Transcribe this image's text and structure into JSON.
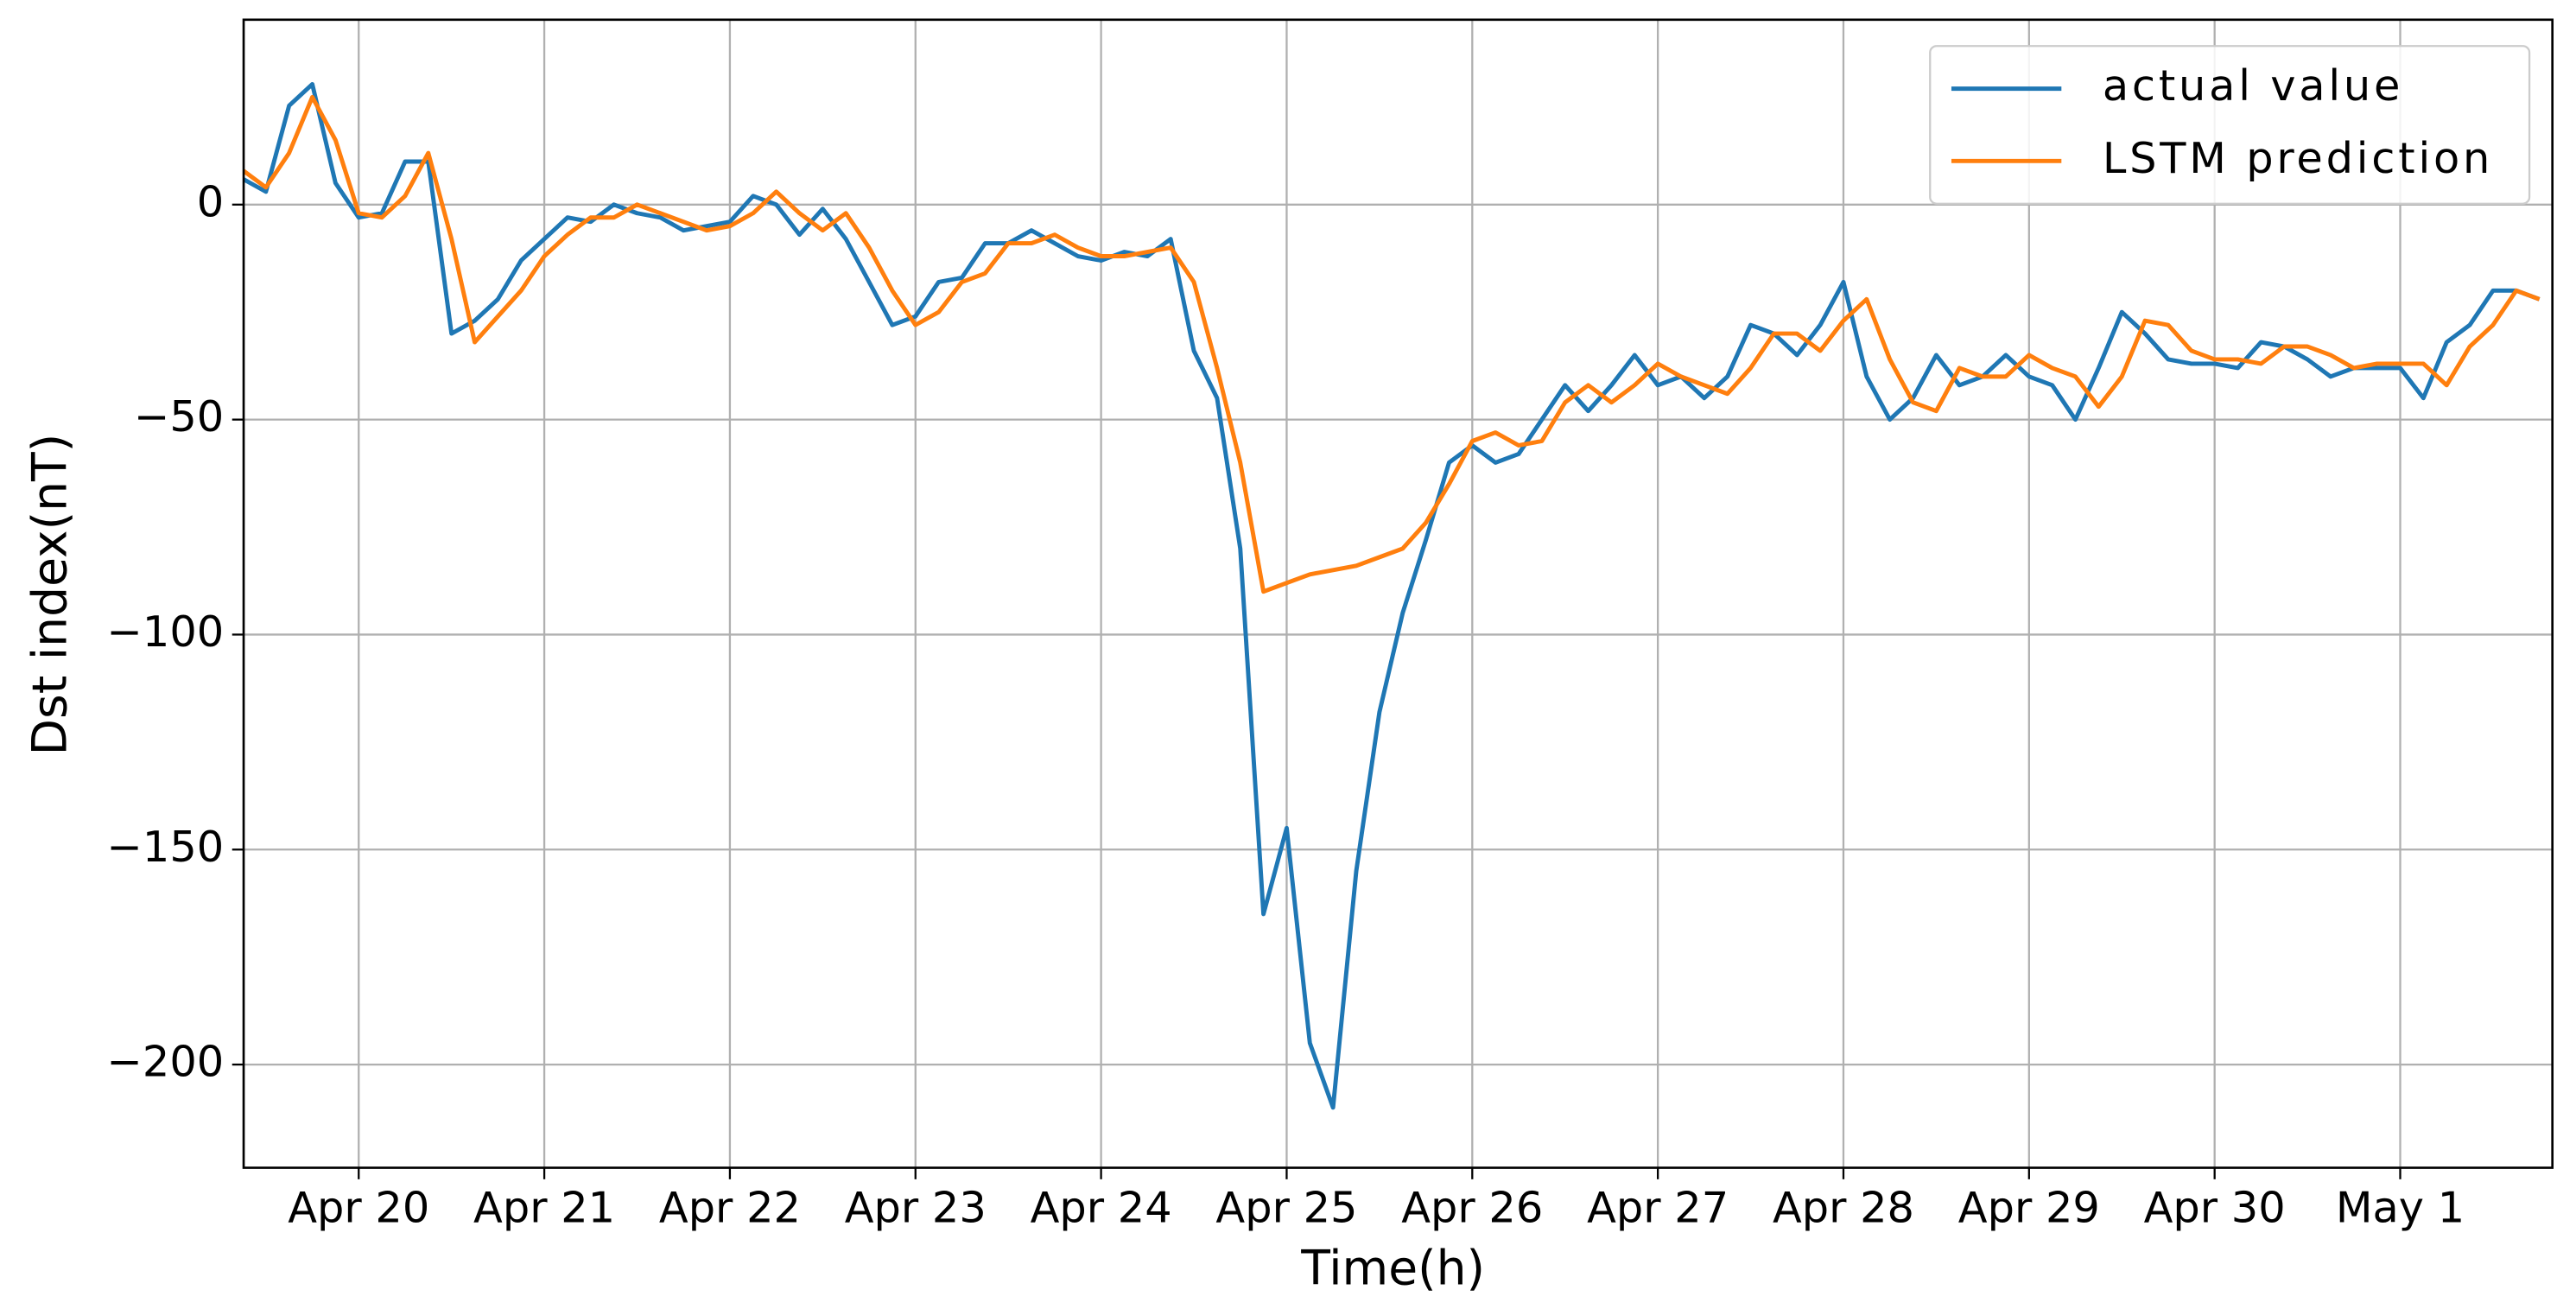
{
  "chart_data": {
    "type": "line",
    "xlabel": "Time(h)",
    "ylabel": "Dst index(nT)",
    "grid": true,
    "legend": "upper right",
    "x": [
      -0.625,
      -0.5,
      -0.375,
      -0.25,
      -0.125,
      0,
      0.125,
      0.25,
      0.375,
      0.5,
      0.625,
      0.75,
      0.875,
      1,
      1.125,
      1.25,
      1.375,
      1.5,
      1.625,
      1.75,
      1.875,
      2,
      2.125,
      2.25,
      2.375,
      2.5,
      2.625,
      2.75,
      2.875,
      3,
      3.125,
      3.25,
      3.375,
      3.5,
      3.625,
      3.75,
      3.875,
      4,
      4.125,
      4.25,
      4.375,
      4.5,
      4.625,
      4.75,
      4.875,
      5,
      5.125,
      5.25,
      5.375,
      5.5,
      5.625,
      5.75,
      5.875,
      6,
      6.125,
      6.25,
      6.375,
      6.5,
      6.625,
      6.75,
      6.875,
      7,
      7.125,
      7.25,
      7.375,
      7.5,
      7.625,
      7.75,
      7.875,
      8,
      8.125,
      8.25,
      8.375,
      8.5,
      8.625,
      8.75,
      8.875,
      9,
      9.125,
      9.25,
      9.375,
      9.5,
      9.625,
      9.75,
      9.875,
      10,
      10.125,
      10.25,
      10.375,
      10.5,
      10.625,
      10.75,
      10.875,
      11,
      11.125,
      11.25,
      11.375,
      11.5,
      11.625,
      11.75
    ],
    "series": [
      {
        "name": "actual value",
        "color": "#1f77b4",
        "values": [
          6,
          3,
          23,
          28,
          5,
          -3,
          -2,
          10,
          10,
          -30,
          -27,
          -22,
          -13,
          -8,
          -3,
          -4,
          0,
          -2,
          -3,
          -6,
          -5,
          -4,
          2,
          0,
          -7,
          -1,
          -8,
          -18,
          -28,
          -26,
          -18,
          -17,
          -9,
          -9,
          -6,
          -9,
          -12,
          -13,
          -11,
          -12,
          -8,
          -34,
          -45,
          -80,
          -165,
          -145,
          -195,
          -210,
          -155,
          -118,
          -95,
          -78,
          -60,
          -56,
          -60,
          -58,
          -50,
          -42,
          -48,
          -42,
          -35,
          -42,
          -40,
          -45,
          -40,
          -28,
          -30,
          -35,
          -28,
          -18,
          -40,
          -50,
          -45,
          -35,
          -42,
          -40,
          -35,
          -40,
          -42,
          -50,
          -38,
          -25,
          -30,
          -36,
          -37,
          -37,
          -38,
          -32,
          -33,
          -36,
          -40,
          -38,
          -38,
          -38,
          -45,
          -32,
          -28,
          -20,
          -20,
          -22
        ]
      },
      {
        "name": "LSTM prediction",
        "color": "#ff7f0e",
        "values": [
          8,
          4,
          12,
          25,
          15,
          -2,
          -3,
          2,
          12,
          -8,
          -32,
          -26,
          -20,
          -12,
          -7,
          -3,
          -3,
          0,
          -2,
          -4,
          -6,
          -5,
          -2,
          3,
          -2,
          -6,
          -2,
          -10,
          -20,
          -28,
          -25,
          -18,
          -16,
          -9,
          -9,
          -7,
          -10,
          -12,
          -12,
          -11,
          -10,
          -18,
          -38,
          -60,
          -90,
          -88,
          -86,
          -85,
          -84,
          -82,
          -80,
          -74,
          -65,
          -55,
          -53,
          -56,
          -55,
          -46,
          -42,
          -46,
          -42,
          -37,
          -40,
          -42,
          -44,
          -38,
          -30,
          -30,
          -34,
          -27,
          -22,
          -36,
          -46,
          -48,
          -38,
          -40,
          -40,
          -35,
          -38,
          -40,
          -47,
          -40,
          -27,
          -28,
          -34,
          -36,
          -36,
          -37,
          -33,
          -33,
          -35,
          -38,
          -37,
          -37,
          -37,
          -42,
          -33,
          -28,
          -20,
          -22
        ]
      }
    ],
    "xlim": [
      -0.62,
      11.82
    ],
    "xticks": [
      {
        "value": 0,
        "label": "Apr 20"
      },
      {
        "value": 1,
        "label": "Apr 21"
      },
      {
        "value": 2,
        "label": "Apr 22"
      },
      {
        "value": 3,
        "label": "Apr 23"
      },
      {
        "value": 4,
        "label": "Apr 24"
      },
      {
        "value": 5,
        "label": "Apr 25"
      },
      {
        "value": 6,
        "label": "Apr 26"
      },
      {
        "value": 7,
        "label": "Apr 27"
      },
      {
        "value": 8,
        "label": "Apr 28"
      },
      {
        "value": 9,
        "label": "Apr 29"
      },
      {
        "value": 10,
        "label": "Apr 30"
      },
      {
        "value": 11,
        "label": "May 1"
      }
    ],
    "ylim": [
      -224,
      43
    ],
    "yticks": [
      {
        "value": -200,
        "label": "−200"
      },
      {
        "value": -150,
        "label": "−150"
      },
      {
        "value": -100,
        "label": "−100"
      },
      {
        "value": -50,
        "label": "−50"
      },
      0
    ]
  }
}
